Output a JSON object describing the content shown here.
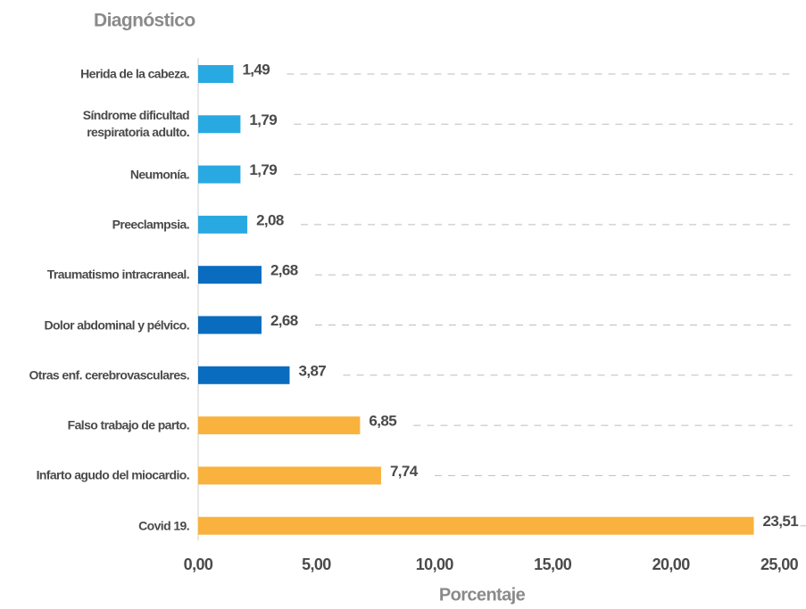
{
  "chart_data": {
    "type": "barh",
    "title": "Diagnóstico",
    "x_label": "Porcentaje",
    "categories": [
      "Herida de la cabeza.",
      "Síndrome dificultad\nrespiratoria adulto.",
      "Neumonía.",
      "Preeclampsia.",
      "Traumatismo intracraneal.",
      "Dolor abdominal y pélvico.",
      "Otras enf. cerebrovasculares.",
      "Falso trabajo de parto.",
      "Infarto agudo del miocardio.",
      "Covid 19."
    ],
    "values": [
      1.49,
      1.79,
      1.79,
      2.08,
      2.68,
      2.68,
      3.87,
      6.85,
      7.74,
      23.51
    ],
    "value_labels": [
      "1,49",
      "1,79",
      "1,79",
      "2,08",
      "2,68",
      "2,68",
      "3,87",
      "6,85",
      "7,74",
      "23,51"
    ],
    "colors": [
      "#29a9e1",
      "#29a9e1",
      "#29a9e1",
      "#29a9e1",
      "#0a6cbf",
      "#0a6cbf",
      "#0a6cbf",
      "#f9b23d",
      "#f9b23d",
      "#f9b23d"
    ],
    "xlim": [
      0,
      25
    ],
    "xticks": [
      {
        "value": 0,
        "label": "0,00"
      },
      {
        "value": 5,
        "label": "5,00"
      },
      {
        "value": 10,
        "label": "10,00"
      },
      {
        "value": 15,
        "label": "15,00"
      },
      {
        "value": 20,
        "label": "20,00"
      },
      {
        "value": 25,
        "label": "25,00"
      }
    ],
    "grid": true
  }
}
